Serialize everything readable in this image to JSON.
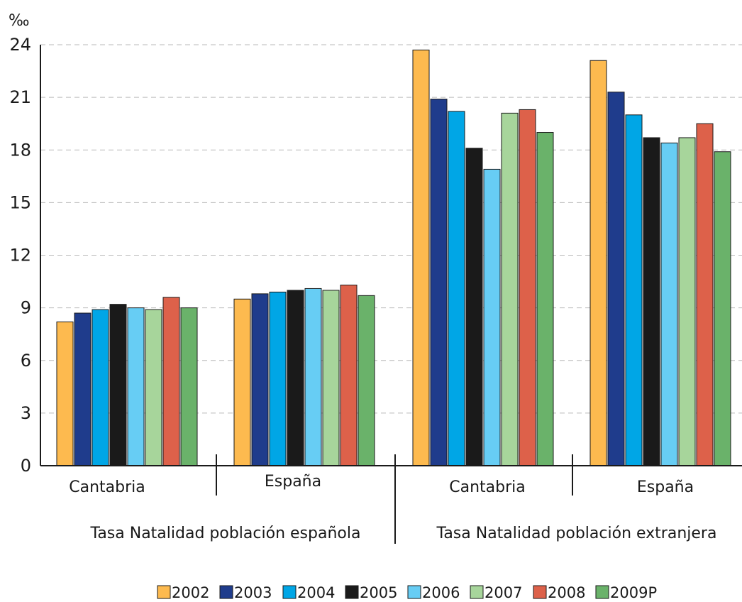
{
  "chart_data": {
    "type": "bar",
    "ylabel": "‰",
    "ylim": [
      0,
      24
    ],
    "yticks": [
      0,
      3,
      6,
      9,
      12,
      15,
      18,
      21,
      24
    ],
    "grid": "horizontal-dashed",
    "legend_position": "bottom",
    "groups": [
      {
        "label": "Tasa Natalidad población española",
        "categories": [
          "Cantabria",
          "España"
        ]
      },
      {
        "label": "Tasa Natalidad población extranjera",
        "categories": [
          "Cantabria",
          "España"
        ]
      }
    ],
    "categories": [
      "Cantabria",
      "España",
      "Cantabria",
      "España"
    ],
    "series": [
      {
        "name": "2002",
        "color": "#FDBA4F",
        "values": [
          8.2,
          9.5,
          23.7,
          23.1
        ]
      },
      {
        "name": "2003",
        "color": "#1F3C8C",
        "values": [
          8.7,
          9.8,
          20.9,
          21.3
        ]
      },
      {
        "name": "2004",
        "color": "#00A6E6",
        "values": [
          8.9,
          9.9,
          20.2,
          20.0
        ]
      },
      {
        "name": "2005",
        "color": "#1A1A1A",
        "values": [
          9.2,
          10.0,
          18.1,
          18.7
        ]
      },
      {
        "name": "2006",
        "color": "#67CDF4",
        "values": [
          9.0,
          10.1,
          16.9,
          18.4
        ]
      },
      {
        "name": "2007",
        "color": "#A7D59B",
        "values": [
          8.9,
          10.0,
          20.1,
          18.7
        ]
      },
      {
        "name": "2008",
        "color": "#DD614A",
        "values": [
          9.6,
          10.3,
          20.3,
          19.5
        ]
      },
      {
        "name": "2009P",
        "color": "#6AB26A",
        "values": [
          9.0,
          9.7,
          19.0,
          17.9
        ]
      }
    ]
  }
}
